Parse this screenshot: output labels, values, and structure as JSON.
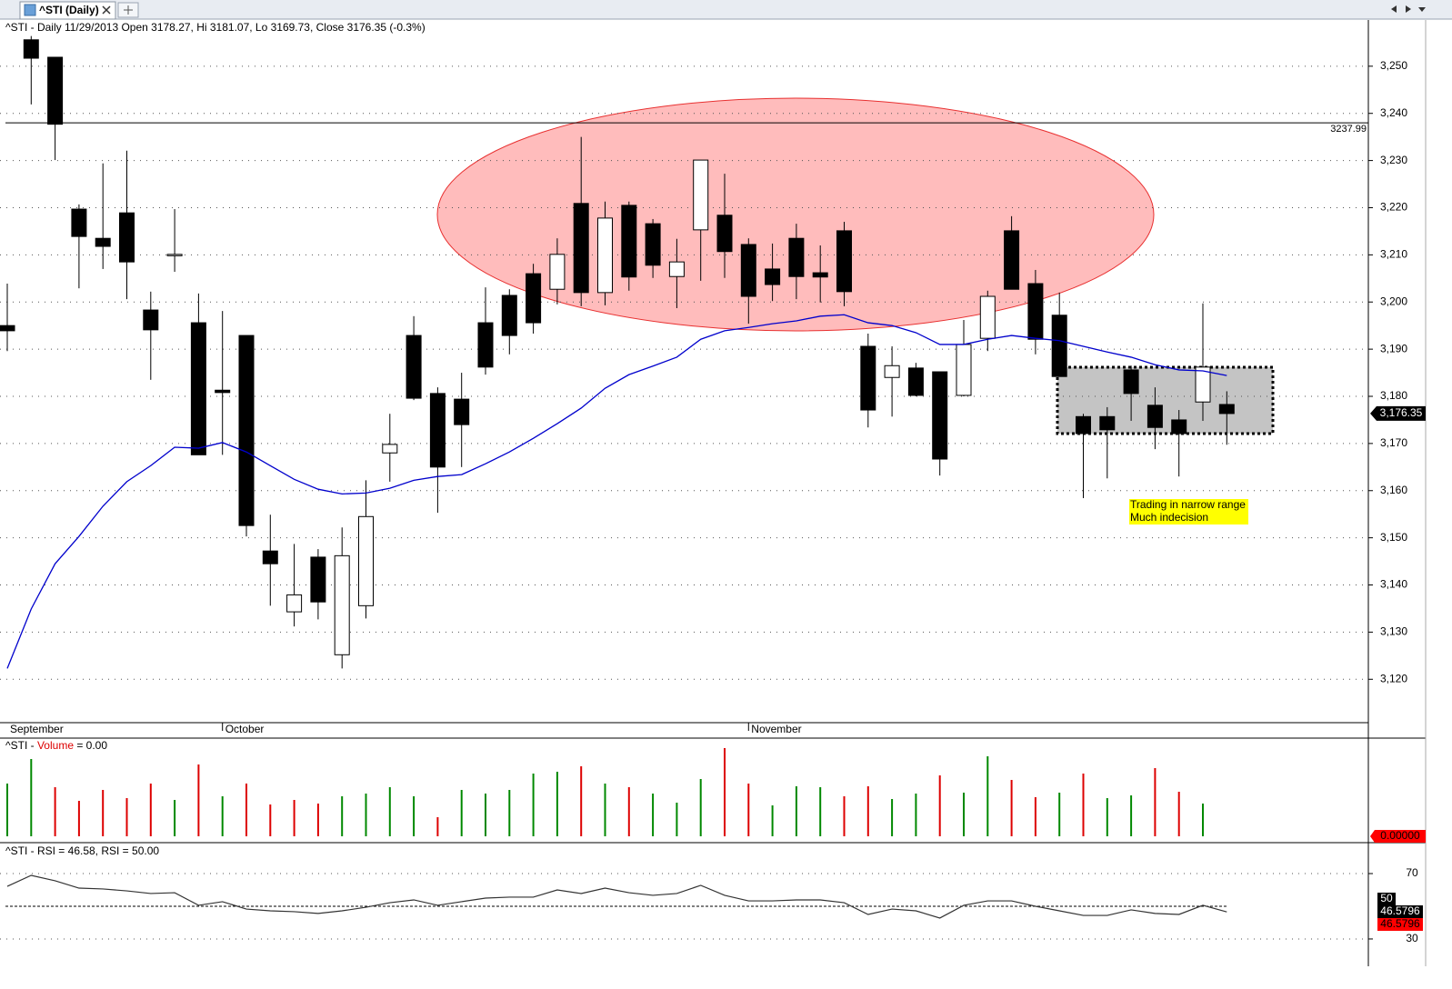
{
  "tab": {
    "label": "^STI (Daily)"
  },
  "chart_data": [
    {
      "type": "candlestick",
      "title": "^STI - Daily 11/29/2013 Open 3178.27, Hi 3181.07, Lo 3169.73, Close 3176.35 (-0.3%)",
      "categories": [
        "September",
        null,
        null,
        null,
        null,
        null,
        null,
        null,
        null,
        "October",
        null,
        null,
        null,
        null,
        null,
        null,
        null,
        null,
        null,
        null,
        null,
        null,
        null,
        null,
        null,
        null,
        null,
        null,
        null,
        null,
        null,
        "November",
        null,
        null,
        null,
        null,
        null,
        null,
        null,
        null,
        null,
        null,
        null,
        null,
        null,
        null,
        null,
        null,
        null,
        null,
        null,
        null
      ],
      "open": [
        3195.0,
        3255.6,
        3251.9,
        3219.7,
        3213.5,
        3218.9,
        3198.3,
        3210.1,
        3195.6,
        3181.3,
        3192.9,
        3147.2,
        3134.3,
        3145.9,
        3125.2,
        3135.6,
        3168.0,
        3192.9,
        3180.6,
        3179.4,
        3195.6,
        3201.4,
        3206.0,
        3202.7,
        3220.9,
        3202.0,
        3220.5,
        3216.6,
        3205.4,
        3215.3,
        3218.4,
        3212.2,
        3207.0,
        3213.5,
        3206.2,
        3215.1,
        3190.6,
        3184.0,
        3186.0,
        3185.2,
        3180.2,
        3192.3,
        3215.1,
        3203.9,
        3197.2,
        3175.7,
        3175.7,
        3185.6,
        3178.1,
        3175.0,
        3178.8,
        3178.27
      ],
      "high": [
        3203.9,
        3256.4,
        3251.9,
        3220.7,
        3229.4,
        3232.1,
        3202.2,
        3219.7,
        3201.8,
        3198.1,
        3192.9,
        3154.9,
        3148.7,
        3147.6,
        3152.2,
        3162.2,
        3176.3,
        3197.0,
        3181.9,
        3185.0,
        3203.1,
        3202.7,
        3208.1,
        3213.5,
        3235.0,
        3221.3,
        3221.3,
        3217.6,
        3213.4,
        3230.1,
        3227.2,
        3213.5,
        3212.4,
        3216.6,
        3212.0,
        3217.0,
        3193.3,
        3190.6,
        3187.1,
        3185.2,
        3196.2,
        3202.4,
        3218.2,
        3206.8,
        3202.0,
        3176.3,
        3177.7,
        3186.5,
        3181.9,
        3177.1,
        3199.7,
        3181.07
      ],
      "low": [
        3189.6,
        3241.9,
        3230.1,
        3202.9,
        3207.0,
        3200.6,
        3183.5,
        3206.4,
        3167.6,
        3167.6,
        3150.3,
        3135.6,
        3131.2,
        3132.7,
        3122.3,
        3132.9,
        3161.9,
        3179.2,
        3155.3,
        3165.0,
        3184.6,
        3188.9,
        3193.3,
        3199.5,
        3199.1,
        3199.3,
        3202.4,
        3205.1,
        3198.7,
        3204.5,
        3205.1,
        3195.4,
        3200.2,
        3200.6,
        3199.9,
        3199.1,
        3173.4,
        3175.7,
        3180.0,
        3163.2,
        3180.0,
        3189.6,
        3202.7,
        3188.9,
        3184.2,
        3158.4,
        3162.6,
        3174.8,
        3168.8,
        3163.0,
        3174.8,
        3169.73
      ],
      "close": [
        3193.9,
        3251.7,
        3237.7,
        3213.9,
        3211.8,
        3208.5,
        3194.1,
        3210.1,
        3167.6,
        3180.8,
        3152.6,
        3144.5,
        3137.9,
        3136.4,
        3146.2,
        3154.5,
        3169.8,
        3179.6,
        3165.0,
        3174.0,
        3186.2,
        3192.9,
        3195.6,
        3210.1,
        3202.0,
        3217.8,
        3205.3,
        3207.8,
        3208.5,
        3230.1,
        3210.7,
        3201.2,
        3203.7,
        3205.4,
        3205.3,
        3202.2,
        3177.1,
        3186.5,
        3180.2,
        3166.7,
        3191.0,
        3201.2,
        3202.7,
        3192.1,
        3184.2,
        3172.1,
        3172.9,
        3180.6,
        3173.4,
        3172.1,
        3186.2,
        3176.35
      ],
      "up_color": "#ffffff",
      "down_color": "#000000",
      "overlay": {
        "color": "#0000cc",
        "values": [
          3122.3,
          3134.9,
          3144.5,
          3150.3,
          3156.7,
          3161.9,
          3165.3,
          3169.2,
          3169.0,
          3170.2,
          3168.2,
          3165.3,
          3162.4,
          3160.3,
          3159.3,
          3159.5,
          3160.5,
          3162.2,
          3163.0,
          3163.4,
          3165.7,
          3168.2,
          3171.1,
          3174.2,
          3177.5,
          3181.7,
          3184.6,
          3186.4,
          3188.3,
          3192.1,
          3193.9,
          3194.6,
          3195.4,
          3196.0,
          3197.0,
          3197.3,
          3195.6,
          3195.0,
          3193.5,
          3191.0,
          3191.0,
          3192.1,
          3192.9,
          3192.3,
          3191.8,
          3190.6,
          3189.4,
          3188.3,
          3186.7,
          3185.6,
          3185.4,
          3184.4
        ]
      },
      "hline": 3237.99,
      "price_tag": {
        "value": 3176.35,
        "label": "3,176.35"
      },
      "annotations": [
        "Trading in narrow range",
        "Much indecision"
      ],
      "ylim": [
        3110.8,
        3259.8
      ],
      "yticks": [
        {
          "value": 3120,
          "label": "3,120"
        },
        {
          "value": 3130,
          "label": "3,130"
        },
        {
          "value": 3140,
          "label": "3,140"
        },
        {
          "value": 3150,
          "label": "3,150"
        },
        {
          "value": 3160,
          "label": "3,160"
        },
        {
          "value": 3170,
          "label": "3,170"
        },
        {
          "value": 3180,
          "label": "3,180"
        },
        {
          "value": 3190,
          "label": "3,190"
        },
        {
          "value": 3200,
          "label": "3,200"
        },
        {
          "value": 3210,
          "label": "3,210"
        },
        {
          "value": 3220,
          "label": "3,220"
        },
        {
          "value": 3230,
          "label": "3,230"
        },
        {
          "value": 3240,
          "label": "3,240"
        },
        {
          "value": 3250,
          "label": "3,250"
        }
      ],
      "grid": true
    },
    {
      "type": "volume",
      "title_parts": [
        "^STI - ",
        "Volume",
        " = 0.00"
      ],
      "values": [
        58,
        85,
        54,
        39,
        51,
        42,
        58,
        40,
        79,
        44,
        58,
        35,
        40,
        36,
        44,
        47,
        54,
        44,
        21,
        51,
        47,
        51,
        69,
        71,
        77,
        58,
        54,
        47,
        37,
        63,
        97,
        58,
        34,
        55,
        54,
        44,
        55,
        41,
        47,
        67,
        48,
        88,
        62,
        43,
        48,
        69,
        42,
        45,
        75,
        49,
        36,
        0
      ],
      "colors": [
        "#008800",
        "#008800",
        "#dd0000",
        "#dd0000",
        "#dd0000",
        "#dd0000",
        "#dd0000",
        "#008800",
        "#dd0000",
        "#008800",
        "#dd0000",
        "#dd0000",
        "#dd0000",
        "#dd0000",
        "#008800",
        "#008800",
        "#008800",
        "#008800",
        "#dd0000",
        "#008800",
        "#008800",
        "#008800",
        "#008800",
        "#008800",
        "#dd0000",
        "#008800",
        "#dd0000",
        "#008800",
        "#008800",
        "#008800",
        "#dd0000",
        "#dd0000",
        "#008800",
        "#008800",
        "#008800",
        "#dd0000",
        "#dd0000",
        "#008800",
        "#008800",
        "#dd0000",
        "#008800",
        "#008800",
        "#dd0000",
        "#dd0000",
        "#008800",
        "#dd0000",
        "#008800",
        "#008800",
        "#dd0000",
        "#dd0000",
        "#008800",
        "#008800"
      ],
      "value_tag": {
        "value": 0,
        "label": "0.00000"
      },
      "ylim": [
        0,
        108
      ]
    },
    {
      "type": "line",
      "title": "^STI - RSI = 46.58, RSI = 50.00",
      "color": "#333333",
      "values": [
        62.2,
        68.9,
        65.6,
        61.1,
        60.6,
        59.4,
        57.8,
        58.3,
        50.6,
        52.8,
        48.3,
        47.2,
        46.7,
        45.6,
        47.2,
        49.4,
        52.2,
        53.9,
        50.6,
        52.8,
        55.0,
        55.6,
        55.6,
        60.0,
        57.8,
        61.1,
        58.3,
        56.7,
        57.8,
        62.8,
        56.7,
        53.3,
        53.3,
        53.9,
        53.9,
        52.2,
        45.0,
        48.3,
        47.2,
        42.8,
        50.6,
        53.3,
        53.3,
        50.0,
        47.2,
        44.4,
        44.4,
        47.8,
        45.6,
        45.0,
        50.6,
        46.5796
      ],
      "reference": 50,
      "ylim": [
        13.3,
        87.8
      ],
      "yticks": [
        70,
        30
      ],
      "grid": true
    }
  ]
}
